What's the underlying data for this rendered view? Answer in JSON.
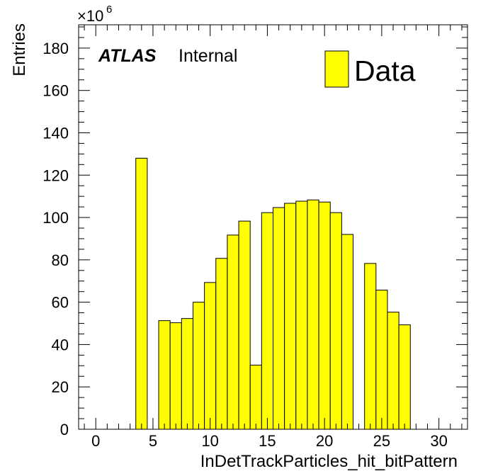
{
  "chart_data": {
    "type": "bar",
    "histogram": true,
    "x": [
      0,
      1,
      2,
      3,
      4,
      5,
      6,
      7,
      8,
      9,
      10,
      11,
      12,
      13,
      14,
      15,
      16,
      17,
      18,
      19,
      20,
      21,
      22,
      23,
      24,
      25,
      26,
      27,
      28,
      29,
      30,
      31
    ],
    "values": [
      0,
      0,
      0,
      0,
      128,
      0,
      51.3,
      50.3,
      52.3,
      60.0,
      69.3,
      80.7,
      91.7,
      98.3,
      30.3,
      102.3,
      104.7,
      106.7,
      107.7,
      108.3,
      107.3,
      102.3,
      92.0,
      0,
      78.3,
      65.7,
      55.3,
      49.3,
      0,
      0,
      0,
      0
    ],
    "bin_width": 1,
    "xlim": [
      -1.5,
      32.5
    ],
    "ylim": [
      0,
      191
    ],
    "x_ticks": [
      0,
      5,
      10,
      15,
      20,
      25,
      30
    ],
    "y_ticks": [
      0,
      20,
      40,
      60,
      80,
      100,
      120,
      140,
      160,
      180
    ],
    "xlabel": "InDetTrackParticles_hit_bitPattern",
    "ylabel": "Entries",
    "y_exponent_base": "×10",
    "y_exponent_power": "6",
    "atlas_label": "ATLAS",
    "internal_label": "Internal",
    "legend": [
      {
        "name": "Data",
        "color": "#ffff00"
      }
    ],
    "legend_position": "top-right",
    "fill_color": "#ffff00",
    "edge_color": "#000000",
    "grid": false
  }
}
